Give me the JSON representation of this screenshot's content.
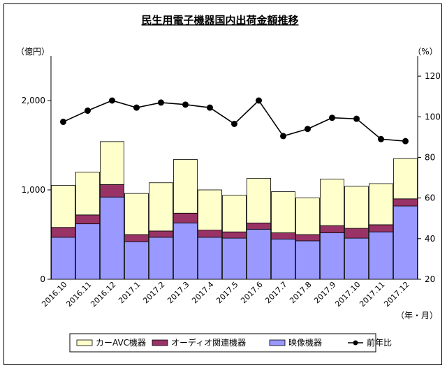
{
  "chart_data": {
    "type": "bar",
    "title": "民生用電子機器国内出荷金額推移",
    "left_unit": "（億円）",
    "right_unit": "（%）",
    "x_unit": "（年・月）",
    "categories": [
      "2016.10",
      "2016.11",
      "2016.12",
      "2017.1",
      "2017.2",
      "2017.3",
      "2017.4",
      "2017.5",
      "2017.6",
      "2017.7",
      "2017.8",
      "2017.9",
      "2017.10",
      "2017.11",
      "2017.12"
    ],
    "left_axis": {
      "min": 0,
      "max": 2500,
      "ticks": [
        0,
        1000,
        2000
      ],
      "tick_labels": [
        "0",
        "1,000",
        "2,000"
      ]
    },
    "right_axis": {
      "min": 20,
      "max": 130,
      "ticks": [
        20,
        40,
        60,
        80,
        100,
        120
      ],
      "tick_labels": [
        "20",
        "40",
        "60",
        "80",
        "100",
        "120"
      ]
    },
    "series": [
      {
        "name": "映像機器",
        "type": "bar",
        "axis": "left",
        "color": "#9999ff",
        "values": [
          470,
          620,
          920,
          420,
          470,
          630,
          470,
          460,
          560,
          450,
          430,
          520,
          460,
          530,
          820
        ]
      },
      {
        "name": "オーディオ関連機器",
        "type": "bar",
        "axis": "left",
        "color": "#993366",
        "values": [
          110,
          100,
          140,
          80,
          70,
          110,
          80,
          70,
          70,
          70,
          70,
          80,
          110,
          80,
          80
        ]
      },
      {
        "name": "カーAVC機器",
        "type": "bar",
        "axis": "left",
        "color": "#ffffcc",
        "values": [
          470,
          480,
          480,
          460,
          540,
          600,
          450,
          410,
          500,
          460,
          410,
          520,
          470,
          460,
          450
        ]
      },
      {
        "name": "前年比",
        "type": "line",
        "axis": "right",
        "color": "#000000",
        "values": [
          97.5,
          103,
          108,
          104.5,
          107,
          106,
          104.5,
          96.5,
          108,
          90.5,
          94,
          99.5,
          99,
          89,
          88
        ]
      }
    ],
    "legend": {
      "position": "bottom",
      "items": [
        {
          "label": "カーAVC機器",
          "color": "#ffffcc",
          "kind": "box"
        },
        {
          "label": "オーディオ関連機器",
          "color": "#993366",
          "kind": "box"
        },
        {
          "label": "映像機器",
          "color": "#9999ff",
          "kind": "box"
        },
        {
          "label": "前年比",
          "color": "#000000",
          "kind": "line"
        }
      ]
    }
  }
}
